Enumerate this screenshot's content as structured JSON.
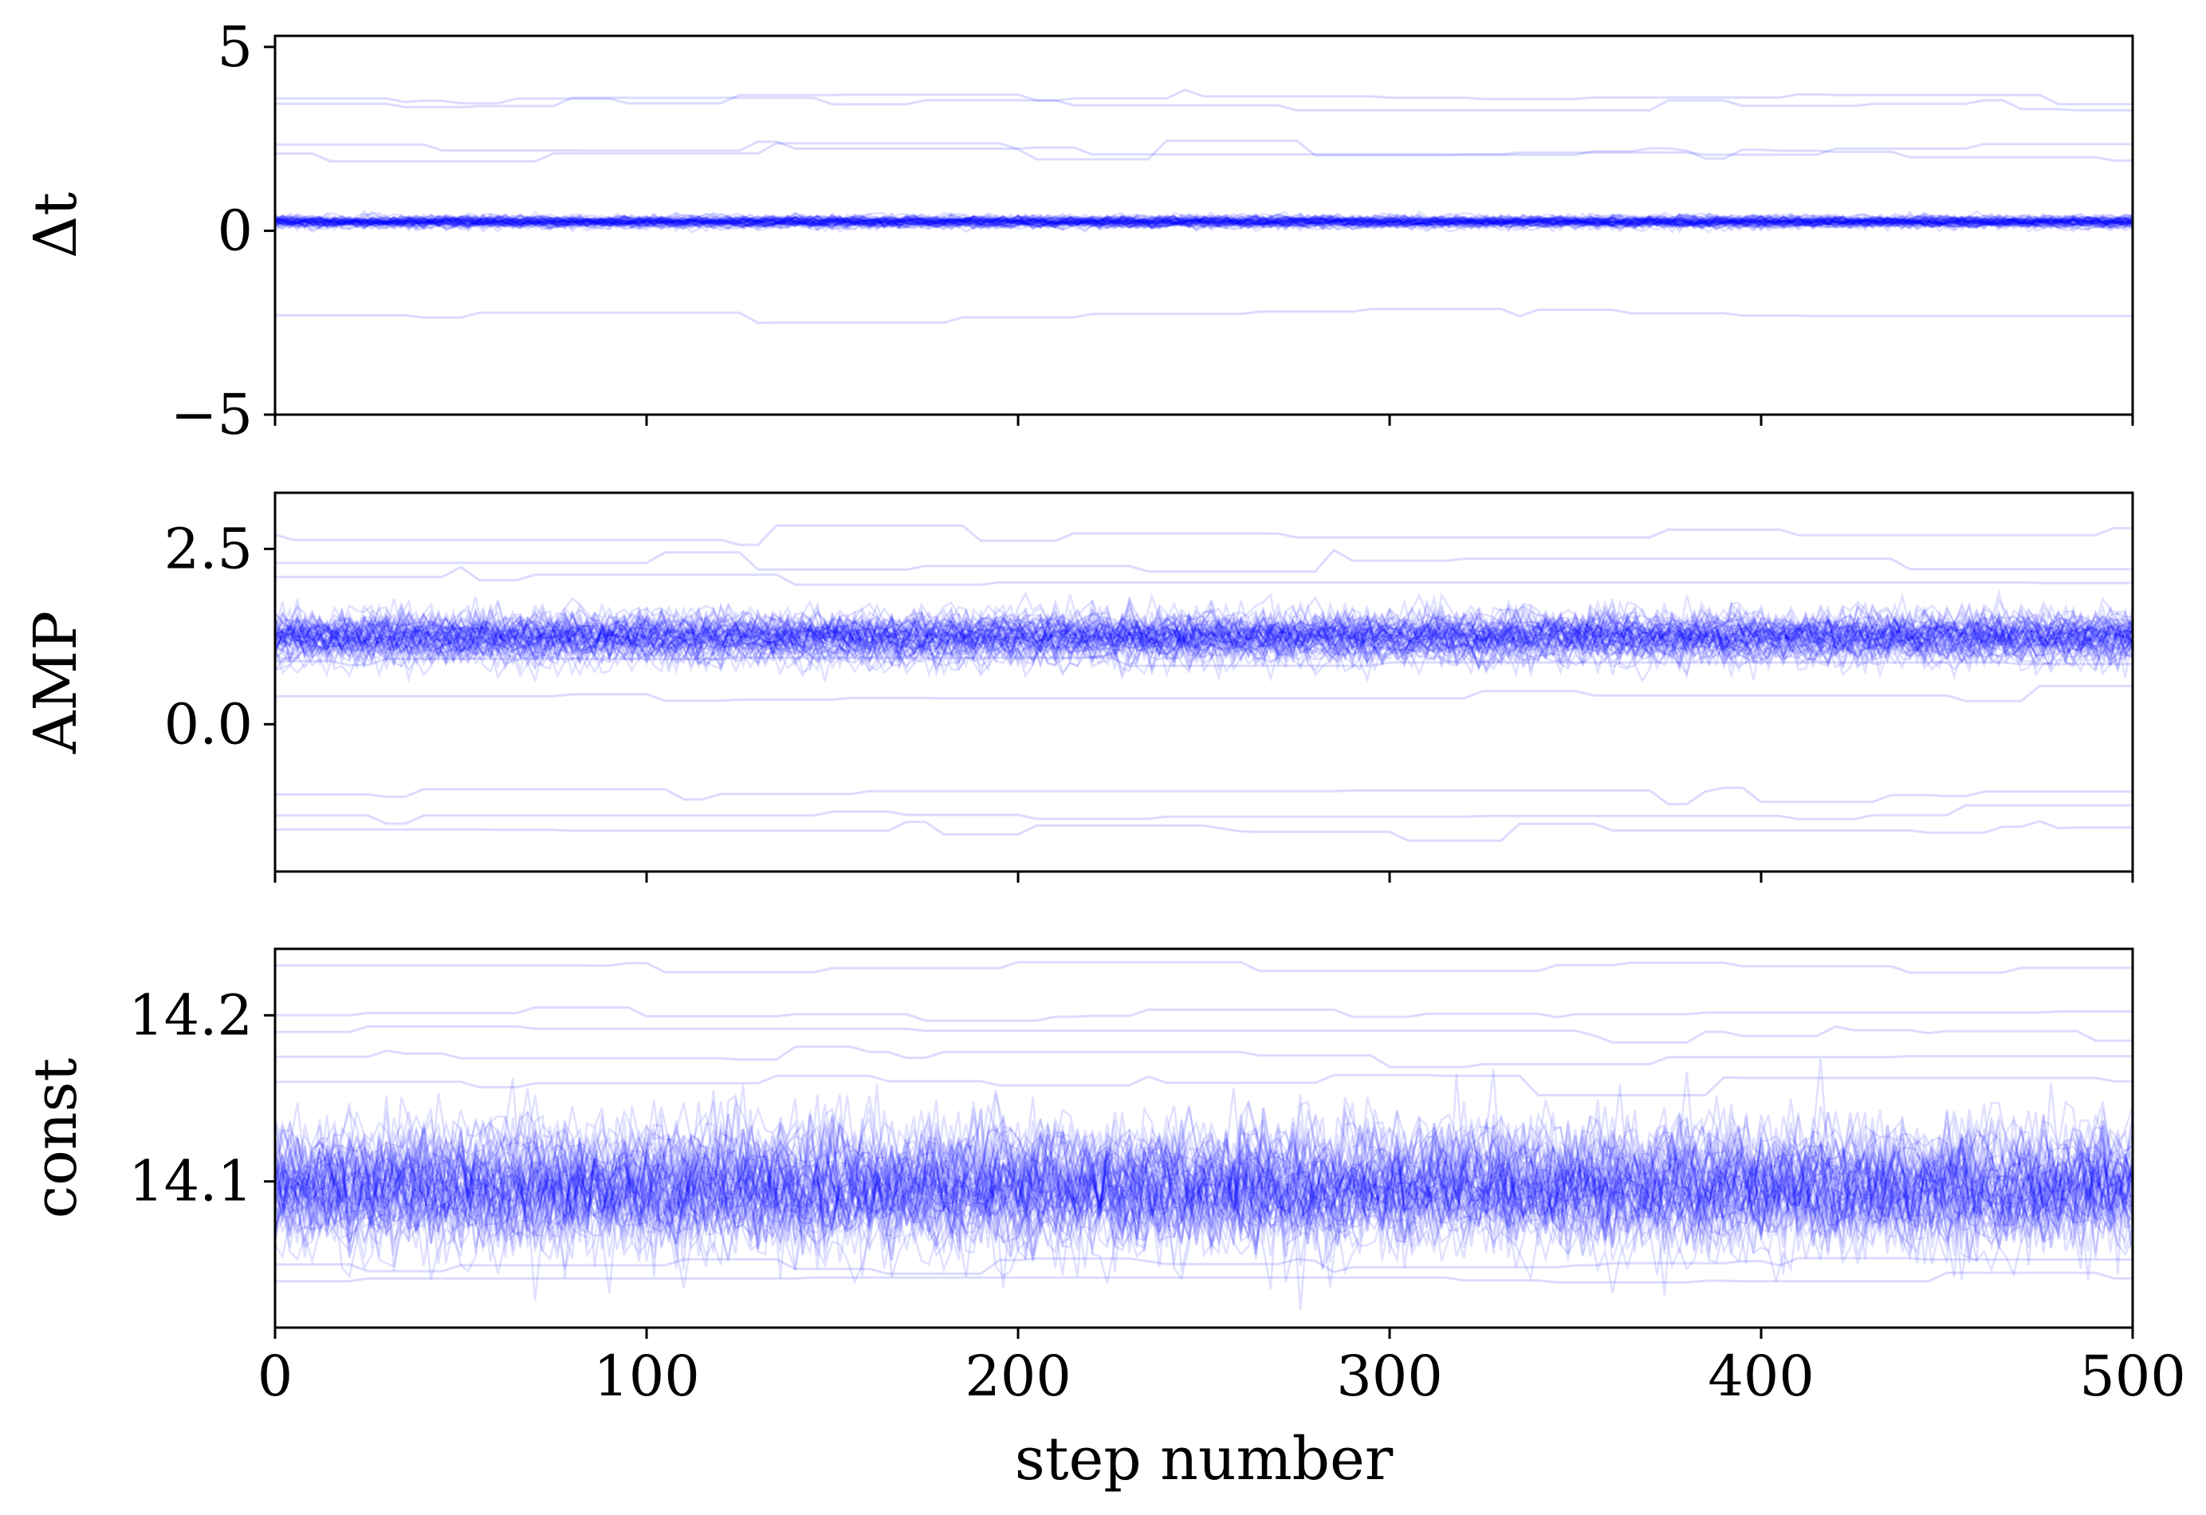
{
  "chart_data": [
    {
      "type": "line",
      "panel": "top",
      "ylabel": "Δt",
      "xlim": [
        0,
        500
      ],
      "ylim": [
        -5,
        5.3
      ],
      "x_ticks": [
        0,
        100,
        200,
        300,
        400,
        500
      ],
      "y_ticks": [
        5,
        0,
        -5
      ],
      "y_tick_labels": [
        "5",
        "0",
        "−5"
      ],
      "x_tick_labels_shown": false,
      "line_color": "#0000ff",
      "grid": false,
      "steps": 500,
      "main_band": {
        "center": 0.25,
        "spread": 0.08,
        "walkers": 60
      },
      "outlier_levels": [
        3.6,
        3.45,
        2.2,
        2.1,
        -2.3
      ],
      "series_note": ""
    },
    {
      "type": "line",
      "panel": "middle",
      "ylabel": "AMP",
      "xlim": [
        0,
        500
      ],
      "ylim": [
        -2.1,
        3.3
      ],
      "x_ticks": [
        0,
        100,
        200,
        300,
        400,
        500
      ],
      "y_ticks": [
        2.5,
        0.0
      ],
      "y_tick_labels": [
        "2.5",
        "0.0"
      ],
      "x_tick_labels_shown": false,
      "line_color": "#0000ff",
      "grid": false,
      "steps": 500,
      "main_band": {
        "center": 1.25,
        "spread": 0.18,
        "walkers": 60
      },
      "outlier_levels": [
        2.7,
        2.1,
        2.3,
        0.9,
        0.4,
        -1.0,
        -1.3,
        -1.5
      ]
    },
    {
      "type": "line",
      "panel": "bottom",
      "ylabel": "const",
      "xlabel": "step number",
      "xlim": [
        0,
        500
      ],
      "ylim": [
        14.012,
        14.24
      ],
      "x_ticks": [
        0,
        100,
        200,
        300,
        400,
        500
      ],
      "x_tick_labels": [
        "0",
        "100",
        "200",
        "300",
        "400",
        "500"
      ],
      "y_ticks": [
        14.2,
        14.1
      ],
      "y_tick_labels": [
        "14.2",
        "14.1"
      ],
      "x_tick_labels_shown": true,
      "line_color": "#0000ff",
      "grid": false,
      "steps": 500,
      "main_band": {
        "center": 14.1,
        "spread": 0.018,
        "walkers": 60
      },
      "outlier_levels": [
        14.23,
        14.2,
        14.19,
        14.175,
        14.16,
        14.05,
        14.04
      ]
    }
  ]
}
